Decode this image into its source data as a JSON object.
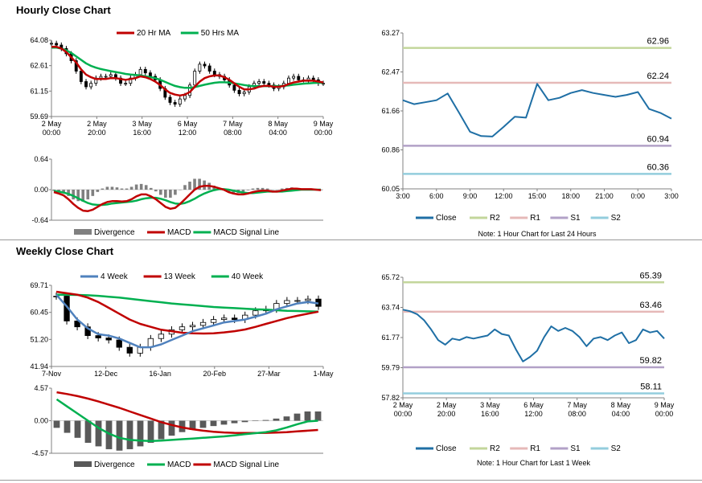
{
  "hourly_title": "Hourly Close Chart",
  "weekly_title": "Weekly Close Chart",
  "colors": {
    "ma_short": "#c00000",
    "ma_long": "#00b050",
    "week4": "#4f81bd",
    "close": "#1f6fa5",
    "r2": "#c3d69b",
    "r1": "#e6b9b8",
    "s1": "#b2a1c7",
    "s2": "#93cddd",
    "divergence": "#808080",
    "candle": "#000000",
    "axis": "#808080"
  },
  "chart_data": [
    {
      "id": "hourly_price",
      "type": "candlestick",
      "legend": [
        "20 Hr MA",
        "50 Hrs MA"
      ],
      "x_ticks": [
        "2 May\n00:00",
        "2 May\n20:00",
        "3 May\n16:00",
        "6 May\n12:00",
        "7 May\n08:00",
        "8 May\n04:00",
        "9 May\n00:00"
      ],
      "y_ticks": [
        "64.08",
        "62.61",
        "61.15",
        "59.69"
      ],
      "ylim": [
        59.69,
        64.08
      ],
      "close": [
        63.9,
        63.8,
        63.6,
        63.3,
        62.9,
        62.3,
        61.7,
        61.4,
        61.6,
        61.9,
        62.0,
        62.0,
        62.1,
        61.9,
        61.6,
        61.6,
        61.9,
        62.1,
        62.4,
        62.2,
        62.0,
        61.8,
        61.3,
        60.8,
        60.5,
        60.4,
        60.7,
        60.9,
        61.5,
        62.3,
        62.7,
        62.6,
        62.3,
        62.1,
        62.0,
        61.8,
        61.5,
        61.2,
        61.0,
        61.1,
        61.4,
        61.6,
        61.7,
        61.6,
        61.5,
        61.3,
        61.4,
        61.6,
        61.9,
        62.0,
        61.8,
        61.8,
        61.9,
        61.8,
        61.6,
        61.6
      ],
      "ma20": [
        63.7,
        63.7,
        63.6,
        63.4,
        63.1,
        62.8,
        62.4,
        62.1,
        61.95,
        61.85,
        61.85,
        61.85,
        61.9,
        61.9,
        61.85,
        61.8,
        61.85,
        61.9,
        62.0,
        61.95,
        61.85,
        61.7,
        61.5,
        61.25,
        61.05,
        60.95,
        60.9,
        60.95,
        61.1,
        61.4,
        61.7,
        61.9,
        62.0,
        62.05,
        62.05,
        61.95,
        61.8,
        61.6,
        61.4,
        61.25,
        61.25,
        61.3,
        61.4,
        61.45,
        61.45,
        61.4,
        61.4,
        61.45,
        61.55,
        61.65,
        61.7,
        61.75,
        61.75,
        61.75,
        61.7,
        61.65
      ],
      "ma50": [
        63.65,
        63.65,
        63.6,
        63.5,
        63.35,
        63.15,
        62.95,
        62.75,
        62.6,
        62.5,
        62.42,
        62.36,
        62.3,
        62.25,
        62.2,
        62.14,
        62.1,
        62.08,
        62.05,
        62.0,
        61.96,
        61.9,
        61.8,
        61.68,
        61.56,
        61.45,
        61.38,
        61.34,
        61.34,
        61.38,
        61.45,
        61.52,
        61.58,
        61.63,
        61.66,
        61.66,
        61.64,
        61.6,
        61.55,
        61.5,
        61.46,
        61.44,
        61.44,
        61.44,
        61.44,
        61.44,
        61.44,
        61.46,
        61.48,
        61.52,
        61.55,
        61.58,
        61.6,
        61.62,
        61.63,
        61.63
      ]
    },
    {
      "id": "hourly_macd",
      "type": "macd",
      "legend": [
        "Divergence",
        "MACD",
        "MACD Signal Line"
      ],
      "y_ticks": [
        "0.64",
        "0.00",
        "-0.64"
      ],
      "ylim": [
        -0.64,
        0.64
      ],
      "macd": [
        -0.05,
        -0.08,
        -0.12,
        -0.2,
        -0.3,
        -0.38,
        -0.44,
        -0.45,
        -0.42,
        -0.36,
        -0.3,
        -0.26,
        -0.24,
        -0.24,
        -0.25,
        -0.24,
        -0.2,
        -0.14,
        -0.1,
        -0.1,
        -0.14,
        -0.2,
        -0.28,
        -0.36,
        -0.4,
        -0.38,
        -0.3,
        -0.2,
        -0.1,
        0.0,
        0.06,
        0.08,
        0.08,
        0.06,
        0.03,
        0.0,
        -0.05,
        -0.08,
        -0.1,
        -0.1,
        -0.08,
        -0.05,
        -0.03,
        -0.02,
        -0.02,
        -0.04,
        -0.04,
        -0.02,
        0.0,
        0.02,
        0.02,
        0.01,
        0.01,
        0.01,
        0.0,
        -0.01
      ],
      "signal": [
        -0.03,
        -0.04,
        -0.06,
        -0.09,
        -0.13,
        -0.18,
        -0.23,
        -0.28,
        -0.31,
        -0.32,
        -0.32,
        -0.31,
        -0.29,
        -0.28,
        -0.27,
        -0.26,
        -0.25,
        -0.23,
        -0.2,
        -0.18,
        -0.17,
        -0.17,
        -0.19,
        -0.22,
        -0.26,
        -0.29,
        -0.3,
        -0.28,
        -0.24,
        -0.19,
        -0.13,
        -0.08,
        -0.04,
        -0.01,
        0.01,
        0.01,
        0.0,
        -0.02,
        -0.04,
        -0.06,
        -0.07,
        -0.07,
        -0.06,
        -0.05,
        -0.04,
        -0.04,
        -0.04,
        -0.04,
        -0.03,
        -0.02,
        -0.01,
        0.0,
        0.0,
        0.0,
        0.0,
        0.0
      ]
    },
    {
      "id": "hourly_24h",
      "type": "line",
      "x_ticks": [
        "3:00",
        "6:00",
        "9:00",
        "12:00",
        "15:00",
        "18:00",
        "21:00",
        "0:00",
        "3:00"
      ],
      "y_ticks": [
        "63.27",
        "62.47",
        "61.66",
        "60.86",
        "60.05"
      ],
      "ylim": [
        60.05,
        63.27
      ],
      "close": [
        61.88,
        61.8,
        61.84,
        61.88,
        62.02,
        61.63,
        61.23,
        61.14,
        61.13,
        61.33,
        61.54,
        61.52,
        62.22,
        61.88,
        61.93,
        62.03,
        62.09,
        62.03,
        61.99,
        61.95,
        61.99,
        62.05,
        61.7,
        61.62,
        61.5
      ],
      "levels": [
        {
          "name": "R2",
          "value": 62.96,
          "label": "62.96"
        },
        {
          "name": "R1",
          "value": 62.24,
          "label": "62.24"
        },
        {
          "name": "S1",
          "value": 60.94,
          "label": "60.94"
        },
        {
          "name": "S2",
          "value": 60.36,
          "label": "60.36"
        }
      ],
      "legend": [
        "Close",
        "R2",
        "R1",
        "S1",
        "S2"
      ],
      "note": "Note: 1 Hour Chart for Last 24 Hours"
    },
    {
      "id": "weekly_price",
      "type": "candlestick",
      "legend": [
        "4 Week",
        "13 Week",
        "40 Week"
      ],
      "x_ticks": [
        "7-Nov",
        "12-Dec",
        "16-Jan",
        "20-Feb",
        "27-Mar",
        "1-May"
      ],
      "y_ticks": [
        "69.71",
        "60.45",
        "51.20",
        "41.94"
      ],
      "ylim": [
        41.94,
        69.71
      ],
      "close": [
        66.0,
        57.5,
        55.5,
        52.5,
        51.7,
        51.0,
        48.5,
        46.5,
        48.5,
        51.5,
        53.0,
        54.5,
        55.5,
        56.0,
        57.0,
        58.0,
        58.5,
        58.0,
        59.5,
        61.0,
        61.5,
        63.5,
        64.5,
        64.5,
        65.0,
        62.5
      ],
      "wk4": [
        66.5,
        62.5,
        58.0,
        55.0,
        53.0,
        52.5,
        51.5,
        50.0,
        48.5,
        48.5,
        49.5,
        51.0,
        52.5,
        54.0,
        55.0,
        56.0,
        57.0,
        57.5,
        58.0,
        59.0,
        60.0,
        61.5,
        62.5,
        63.5,
        64.0,
        63.5
      ],
      "wk13": [
        67.5,
        67.0,
        66.5,
        65.5,
        64.0,
        62.0,
        60.0,
        58.0,
        56.5,
        55.5,
        54.5,
        54.0,
        53.5,
        53.3,
        53.2,
        53.3,
        53.6,
        54.0,
        54.6,
        55.5,
        56.5,
        57.5,
        58.5,
        59.3,
        60.0,
        60.7
      ],
      "wk40": [
        66.5,
        66.5,
        66.4,
        66.3,
        66.1,
        65.8,
        65.5,
        65.1,
        64.7,
        64.3,
        63.9,
        63.5,
        63.2,
        62.9,
        62.6,
        62.3,
        62.1,
        61.9,
        61.7,
        61.5,
        61.4,
        61.2,
        61.0,
        60.9,
        60.8,
        60.7
      ]
    },
    {
      "id": "weekly_macd",
      "type": "macd",
      "legend": [
        "Divergence",
        "MACD",
        "MACD Signal Line"
      ],
      "y_ticks": [
        "4.57",
        "0.00",
        "-4.57"
      ],
      "ylim": [
        -4.57,
        4.57
      ],
      "macd": [
        3.0,
        2.0,
        1.0,
        0.0,
        -1.0,
        -1.8,
        -2.4,
        -2.7,
        -2.8,
        -2.85,
        -2.8,
        -2.7,
        -2.6,
        -2.5,
        -2.4,
        -2.3,
        -2.2,
        -2.05,
        -1.9,
        -1.75,
        -1.6,
        -1.35,
        -0.95,
        -0.5,
        -0.1,
        0.0
      ],
      "signal": [
        4.0,
        3.75,
        3.45,
        3.1,
        2.7,
        2.25,
        1.8,
        1.3,
        0.8,
        0.3,
        -0.2,
        -0.6,
        -0.95,
        -1.2,
        -1.4,
        -1.55,
        -1.65,
        -1.7,
        -1.72,
        -1.72,
        -1.7,
        -1.66,
        -1.6,
        -1.5,
        -1.4,
        -1.3
      ],
      "divergence": [
        -1.0,
        -1.7,
        -2.4,
        -3.1,
        -3.6,
        -4.0,
        -4.2,
        -4.0,
        -3.6,
        -3.1,
        -2.6,
        -2.1,
        -1.6,
        -1.3,
        -1.0,
        -0.75,
        -0.55,
        -0.35,
        -0.2,
        -0.05,
        0.1,
        0.3,
        0.6,
        1.0,
        1.3,
        1.3
      ]
    },
    {
      "id": "weekly_1w",
      "type": "line",
      "x_ticks": [
        "2 May\n00:00",
        "2 May\n20:00",
        "3 May\n16:00",
        "6 May\n12:00",
        "7 May\n08:00",
        "8 May\n04:00",
        "9 May\n00:00"
      ],
      "y_ticks": [
        "65.72",
        "63.74",
        "61.77",
        "59.79",
        "57.82"
      ],
      "ylim": [
        57.82,
        65.72
      ],
      "close": [
        63.6,
        63.5,
        63.3,
        62.9,
        62.3,
        61.6,
        61.3,
        61.7,
        61.6,
        61.8,
        61.7,
        61.8,
        61.9,
        62.3,
        62.0,
        61.9,
        61.0,
        60.2,
        60.5,
        60.9,
        61.8,
        62.5,
        62.2,
        62.4,
        62.2,
        61.8,
        61.2,
        61.7,
        61.8,
        61.6,
        61.9,
        62.1,
        61.4,
        61.6,
        62.3,
        62.1,
        62.2,
        61.7
      ],
      "levels": [
        {
          "name": "R2",
          "value": 65.39,
          "label": "65.39"
        },
        {
          "name": "R1",
          "value": 63.46,
          "label": "63.46"
        },
        {
          "name": "S1",
          "value": 59.82,
          "label": "59.82"
        },
        {
          "name": "S2",
          "value": 58.11,
          "label": "58.11"
        }
      ],
      "legend": [
        "Close",
        "R2",
        "R1",
        "S1",
        "S2"
      ],
      "note": "Note: 1 Hour Chart for Last 1 Week"
    }
  ]
}
